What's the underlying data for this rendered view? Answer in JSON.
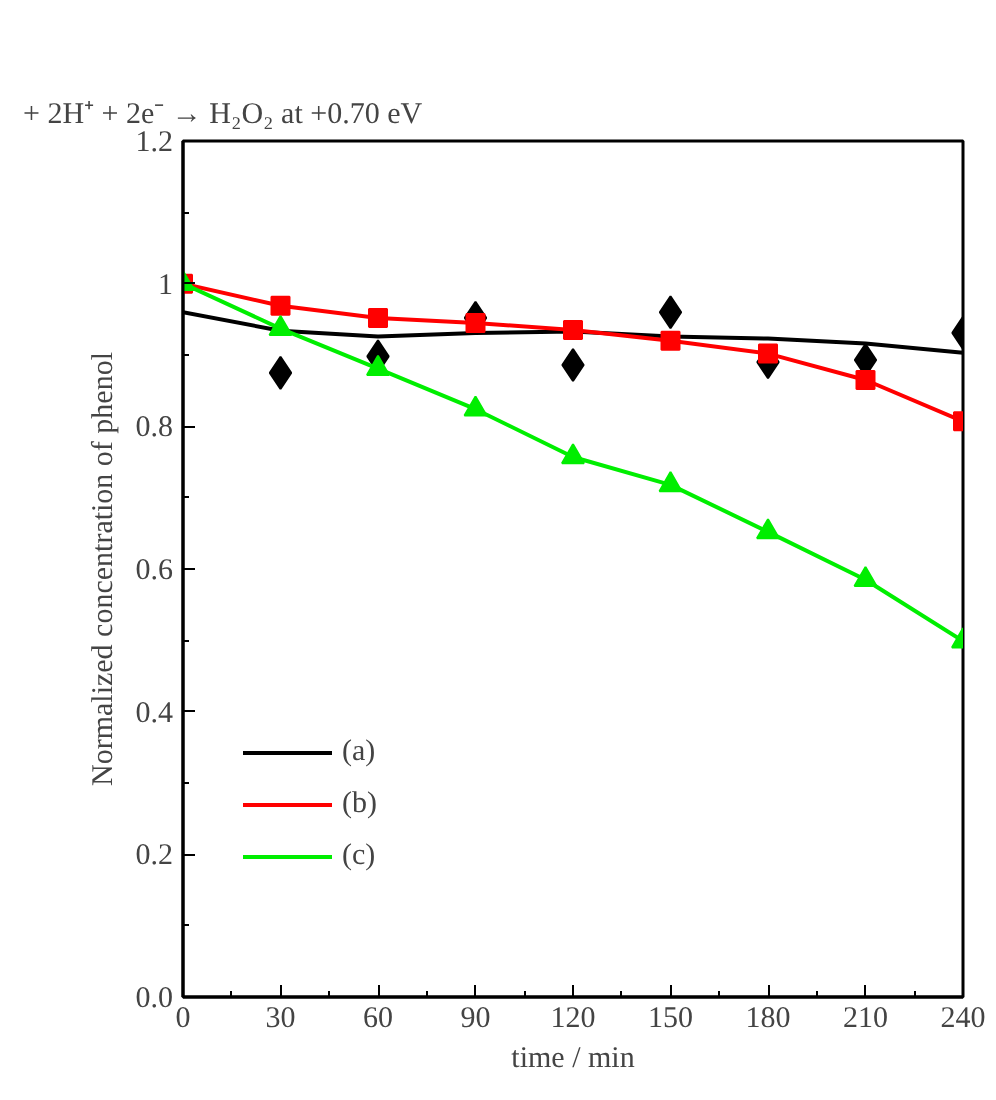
{
  "chart_data": {
    "type": "line",
    "annotations": [
      "+ 2H⁺ + 2e⁻ → H₂O₂",
      "at +0.70 eV"
    ],
    "xlabel": "time / min",
    "ylabel": "Normalized concentration of phenol",
    "x": [
      0,
      30,
      60,
      90,
      120,
      150,
      180,
      210,
      240
    ],
    "series": [
      {
        "type": "scatter",
        "marker": "diamond",
        "color": "#000000",
        "values": [
          null,
          0.875,
          0.898,
          0.952,
          0.886,
          0.96,
          0.89,
          0.893,
          0.931
        ]
      },
      {
        "name": "(a)",
        "marker": "none",
        "color": "#000000",
        "values": [
          0.96,
          0.934,
          0.926,
          0.931,
          0.933,
          0.926,
          0.923,
          0.916,
          0.903
        ]
      },
      {
        "name": "(b)",
        "marker": "square",
        "color": "#ff0000",
        "values": [
          1.0,
          0.969,
          0.952,
          0.945,
          0.935,
          0.92,
          0.902,
          0.865,
          0.807
        ]
      },
      {
        "name": "(c)",
        "marker": "triangle",
        "color": "#00ee00",
        "values": [
          1.0,
          0.937,
          0.881,
          0.824,
          0.757,
          0.718,
          0.652,
          0.585,
          0.499
        ]
      }
    ],
    "xlim": [
      0,
      240
    ],
    "xticks": [
      0,
      30,
      60,
      90,
      120,
      150,
      180,
      210,
      240
    ],
    "ylim": [
      0,
      1.2
    ],
    "yticks": [
      {
        "value": 0,
        "label": "0.0"
      },
      0.2,
      0.4,
      0.6,
      0.8,
      {
        "value": 1,
        "label": "1"
      },
      1.2
    ],
    "grid": false,
    "legend": "left"
  }
}
